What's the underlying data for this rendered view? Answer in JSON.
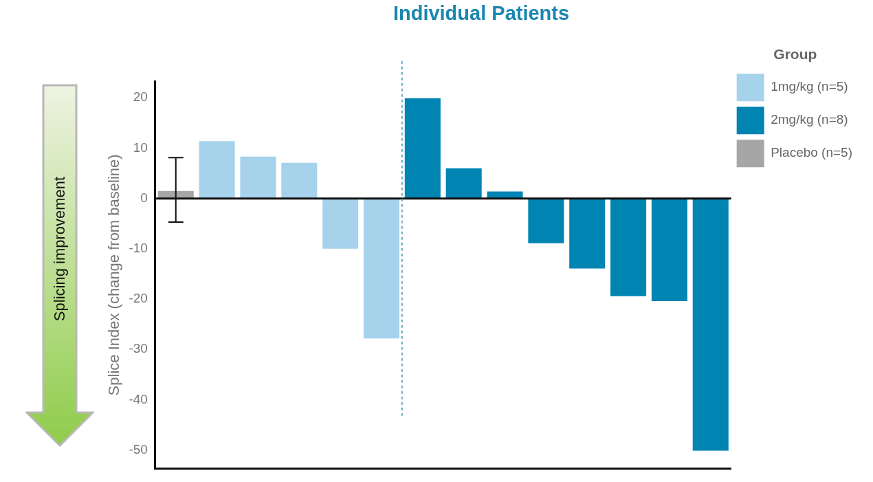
{
  "chart_data": {
    "type": "bar",
    "title": "Individual Patients",
    "ylabel": "Splice Index (change from baseline)",
    "legend_title": "Group",
    "categories": [
      null,
      null,
      null,
      null,
      null,
      null,
      null,
      null,
      null,
      null,
      null,
      null,
      null,
      null
    ],
    "series": [
      {
        "name": "1mg/kg (n=5)",
        "color": "#a6d2ec",
        "values": [
          null,
          11.4,
          8.3,
          7.1,
          -10,
          -27.8,
          null,
          null,
          null,
          null,
          null,
          null,
          null,
          null
        ]
      },
      {
        "name": "2mg/kg (n=8)",
        "color": "#0085b3",
        "values": [
          null,
          null,
          null,
          null,
          null,
          null,
          19.9,
          6.0,
          1.4,
          -8.9,
          -13.9,
          -19.4,
          -20.4,
          -50.1
        ]
      },
      {
        "name": "Placebo (n=5)",
        "color": "#a6a6a6",
        "values": [
          1.5,
          null,
          null,
          null,
          null,
          null,
          null,
          null,
          null,
          null,
          null,
          null,
          null,
          null
        ],
        "errors": [
          [
            -4.7,
            8.1
          ],
          null,
          null,
          null,
          null,
          null,
          null,
          null,
          null,
          null,
          null,
          null,
          null,
          null
        ]
      }
    ],
    "ylim": [
      -53.6,
      23.2
    ],
    "yticks": [
      -50,
      -40,
      -30,
      -20,
      -10,
      0,
      10,
      20
    ],
    "annotations": [
      "Splicing improvement"
    ],
    "legend": "top right",
    "grid": false
  }
}
